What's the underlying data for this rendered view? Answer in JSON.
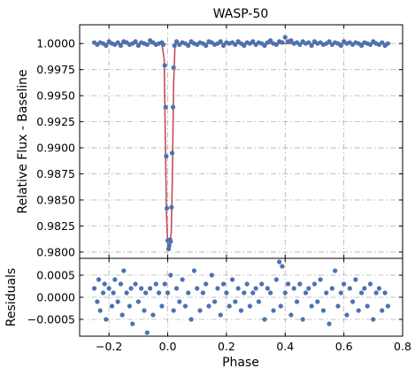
{
  "chart_data": [
    {
      "type": "scatter",
      "panel": "light-curve",
      "title": "WASP-50",
      "xlabel": "",
      "ylabel": "Relative Flux - Baseline",
      "xlim": [
        -0.3,
        0.8
      ],
      "ylim": [
        0.9794,
        1.0018
      ],
      "xticks": [
        -0.2,
        0.0,
        0.2,
        0.4,
        0.6,
        0.8
      ],
      "xtick_labels": [
        "−0.2",
        "0.0",
        "0.2",
        "0.4",
        "0.6",
        "0.8"
      ],
      "show_xtick_labels": false,
      "yticks": [
        0.98,
        0.9825,
        0.985,
        0.9875,
        0.99,
        0.9925,
        0.995,
        0.9975,
        1.0
      ],
      "ytick_labels": [
        "0.9800",
        "0.9825",
        "0.9850",
        "0.9875",
        "0.9900",
        "0.9925",
        "0.9950",
        "0.9975",
        "1.0000"
      ],
      "grid": true,
      "series": [
        {
          "kind": "points",
          "color": "#4c72b0",
          "x": [
            -0.25,
            -0.24,
            -0.23,
            -0.22,
            -0.21,
            -0.2,
            -0.19,
            -0.18,
            -0.17,
            -0.16,
            -0.15,
            -0.14,
            -0.13,
            -0.12,
            -0.11,
            -0.1,
            -0.09,
            -0.08,
            -0.07,
            -0.06,
            -0.05,
            -0.04,
            -0.03,
            -0.02,
            -0.015,
            -0.01,
            -0.007,
            -0.005,
            -0.003,
            0.0,
            0.003,
            0.005,
            0.008,
            0.01,
            0.013,
            0.015,
            0.018,
            0.02,
            0.023,
            0.03,
            0.04,
            0.05,
            0.06,
            0.07,
            0.08,
            0.09,
            0.1,
            0.11,
            0.12,
            0.13,
            0.14,
            0.15,
            0.16,
            0.17,
            0.18,
            0.19,
            0.2,
            0.21,
            0.22,
            0.23,
            0.24,
            0.25,
            0.26,
            0.27,
            0.28,
            0.29,
            0.3,
            0.31,
            0.32,
            0.33,
            0.34,
            0.35,
            0.36,
            0.37,
            0.38,
            0.39,
            0.4,
            0.41,
            0.42,
            0.43,
            0.44,
            0.45,
            0.46,
            0.47,
            0.48,
            0.49,
            0.5,
            0.51,
            0.52,
            0.53,
            0.54,
            0.55,
            0.56,
            0.57,
            0.58,
            0.59,
            0.6,
            0.61,
            0.62,
            0.63,
            0.64,
            0.65,
            0.66,
            0.67,
            0.68,
            0.69,
            0.7,
            0.71,
            0.72,
            0.73,
            0.74,
            0.75
          ],
          "y": [
            1.0001,
            0.9999,
            1.0001,
            1.0,
            0.9998,
            1.0002,
            1.0,
            0.9999,
            1.0001,
            0.9998,
            1.0002,
            1.0001,
            0.9999,
            1.0,
            1.0002,
            0.9998,
            1.0001,
            1.0,
            0.9999,
            1.0003,
            1.0001,
            0.9999,
            1.0,
            1.0001,
            0.9999,
            0.9979,
            0.9939,
            0.9892,
            0.9842,
            0.9811,
            0.9803,
            0.9806,
            0.9812,
            0.981,
            0.9843,
            0.9895,
            0.9939,
            0.9977,
            0.9998,
            1.0002,
            0.9999,
            1.0001,
            1.0,
            0.9998,
            1.0002,
            1.0,
            0.9999,
            1.0001,
            1.0,
            0.9998,
            1.0002,
            1.0001,
            0.9999,
            1.0,
            1.0002,
            0.9998,
            1.0001,
            1.0,
            1.0001,
            0.9999,
            1.0002,
            1.0,
            0.9998,
            1.0001,
            1.0,
            1.0002,
            0.9999,
            1.0001,
            1.0,
            0.9998,
            1.0001,
            1.0003,
            1.0,
            0.9999,
            1.0002,
            1.0001,
            1.0006,
            1.0002,
            1.0003,
            1.0,
            1.0001,
            0.9999,
            1.0002,
            1.0,
            1.0001,
            0.9998,
            1.0002,
            1.0,
            1.0001,
            0.9999,
            1.0,
            1.0002,
            0.9999,
            1.0001,
            1.0,
            0.9998,
            1.0002,
            1.0,
            1.0001,
            0.9999,
            1.0001,
            1.0,
            0.9998,
            1.0001,
            1.0,
            0.9999,
            1.0002,
            1.0,
            0.9999,
            1.0001,
            0.9998,
            1.0
          ]
        },
        {
          "kind": "model",
          "color": "#c44e52",
          "x": [
            -0.25,
            -0.02,
            -0.012,
            -0.008,
            -0.004,
            0.0,
            0.005,
            0.012,
            0.016,
            0.02,
            0.025,
            0.75
          ],
          "y": [
            1.0,
            1.0,
            0.9985,
            0.9905,
            0.9835,
            0.9808,
            0.9806,
            0.9818,
            0.9875,
            0.996,
            1.0,
            1.0
          ]
        }
      ]
    },
    {
      "type": "scatter",
      "panel": "residuals",
      "title": "",
      "xlabel": "Phase",
      "ylabel": "Residuals",
      "xlim": [
        -0.3,
        0.8
      ],
      "ylim": [
        -0.00088,
        0.00088
      ],
      "xticks": [
        -0.2,
        0.0,
        0.2,
        0.4,
        0.6,
        0.8
      ],
      "xtick_labels": [
        "−0.2",
        "0.0",
        "0.2",
        "0.4",
        "0.6",
        "0.8"
      ],
      "yticks": [
        -0.0005,
        0.0,
        0.0005
      ],
      "ytick_labels": [
        "−0.0005",
        "0.0000",
        "0.0005"
      ],
      "grid": true,
      "series": [
        {
          "kind": "points",
          "color": "#4c72b0",
          "x": [
            -0.25,
            -0.24,
            -0.235,
            -0.23,
            -0.22,
            -0.215,
            -0.21,
            -0.2,
            -0.19,
            -0.185,
            -0.18,
            -0.17,
            -0.16,
            -0.155,
            -0.15,
            -0.14,
            -0.13,
            -0.125,
            -0.12,
            -0.11,
            -0.1,
            -0.09,
            -0.08,
            -0.075,
            -0.07,
            -0.06,
            -0.05,
            -0.04,
            -0.03,
            -0.02,
            -0.01,
            0.0,
            0.01,
            0.02,
            0.03,
            0.04,
            0.05,
            0.06,
            0.07,
            0.08,
            0.09,
            0.1,
            0.11,
            0.12,
            0.13,
            0.14,
            0.15,
            0.16,
            0.17,
            0.18,
            0.19,
            0.2,
            0.21,
            0.22,
            0.23,
            0.24,
            0.25,
            0.26,
            0.27,
            0.28,
            0.29,
            0.3,
            0.31,
            0.32,
            0.33,
            0.34,
            0.35,
            0.36,
            0.37,
            0.38,
            0.385,
            0.39,
            0.4,
            0.41,
            0.42,
            0.43,
            0.44,
            0.45,
            0.46,
            0.47,
            0.48,
            0.49,
            0.5,
            0.51,
            0.52,
            0.53,
            0.54,
            0.55,
            0.56,
            0.57,
            0.58,
            0.59,
            0.6,
            0.61,
            0.62,
            0.63,
            0.64,
            0.65,
            0.66,
            0.67,
            0.68,
            0.69,
            0.7,
            0.71,
            0.72,
            0.73,
            0.74,
            0.75
          ],
          "y": [
            0.0002,
            -0.0001,
            0.0004,
            -0.0003,
            0.0001,
            0.0003,
            -0.0005,
            0.0002,
            -0.0002,
            0.0001,
            0.0004,
            -0.0001,
            0.0003,
            -0.0004,
            0.0006,
            0.0001,
            -0.0002,
            0.0002,
            -0.0006,
            0.0003,
            -0.0001,
            0.0002,
            -0.0003,
            0.0001,
            -0.0008,
            0.0002,
            -0.0004,
            0.0003,
            0.0001,
            -0.0002,
            0.0003,
            0.0001,
            0.0005,
            -0.0003,
            0.0002,
            -0.0001,
            0.0004,
            -0.0002,
            0.0001,
            -0.0005,
            0.0006,
            0.0002,
            -0.0003,
            0.0001,
            0.0003,
            -0.0002,
            0.0005,
            -0.0001,
            0.0002,
            -0.0004,
            0.0003,
            0.0001,
            -0.0002,
            0.0004,
            -0.0001,
            0.0002,
            -0.0003,
            0.0001,
            0.0003,
            -0.0002,
            0.0001,
            0.0002,
            -0.0001,
            0.0003,
            -0.0005,
            0.0002,
            0.0001,
            -0.0003,
            0.0004,
            0.0008,
            -0.0002,
            0.0007,
            0.0001,
            0.0003,
            -0.0004,
            0.0002,
            -0.0001,
            0.0003,
            -0.0005,
            0.0001,
            0.0002,
            -0.0002,
            0.0003,
            -0.0001,
            0.0004,
            -0.0003,
            0.0001,
            -0.0006,
            0.0002,
            0.0006,
            -0.0002,
            0.0001,
            0.0003,
            -0.0004,
            0.0002,
            -0.0001,
            0.0004,
            -0.0003,
            0.0001,
            0.0002,
            -0.0002,
            0.0003,
            -0.0005,
            0.0001,
            0.0002,
            -0.0003,
            0.0001,
            -0.0002
          ]
        }
      ]
    }
  ]
}
